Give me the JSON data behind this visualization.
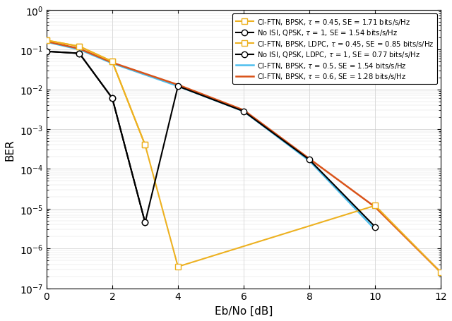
{
  "series": [
    {
      "label": "CI-FTN, BPSK, τ = 0.45, SE = 1.71 bits/s/Hz",
      "x": [
        0,
        1,
        2,
        3
      ],
      "y": [
        0.17,
        0.12,
        0.05,
        0.0004
      ],
      "color": "#EDB120",
      "linestyle": "-",
      "marker": "s",
      "markerfacecolor": "white",
      "markersize": 6,
      "linewidth": 1.5,
      "zorder": 5
    },
    {
      "label": "No ISI, QPSK, τ = 1, SE = 1.54 bits/s/Hz",
      "x": [
        0,
        1,
        2,
        3
      ],
      "y": [
        0.09,
        0.08,
        0.006,
        4.5e-06
      ],
      "color": "#000000",
      "linestyle": "-",
      "marker": "o",
      "markerfacecolor": "white",
      "markersize": 6,
      "linewidth": 1.5,
      "zorder": 5
    },
    {
      "label": "CI-FTN, BPSK, LDPC, τ = 0.45, SE = 0.85 bits/s/Hz",
      "x": [
        0,
        1,
        2,
        3,
        4,
        10,
        12
      ],
      "y": [
        0.17,
        0.12,
        0.05,
        0.0004,
        3.5e-07,
        1.2e-05,
        2.5e-07
      ],
      "color": "#EDB120",
      "linestyle": "-",
      "marker": "s",
      "markerfacecolor": "white",
      "markersize": 6,
      "linewidth": 1.5,
      "zorder": 4
    },
    {
      "label": "No ISI, QPSK, LDPC, τ = 1, SE = 0.77 bits/s/Hz",
      "x": [
        0,
        1,
        2,
        3,
        4,
        6,
        8,
        10
      ],
      "y": [
        0.09,
        0.08,
        0.006,
        4.5e-06,
        0.012,
        0.0028,
        0.00017,
        3.5e-06
      ],
      "color": "#000000",
      "linestyle": "-",
      "marker": "o",
      "markerfacecolor": "white",
      "markersize": 6,
      "linewidth": 1.5,
      "zorder": 4
    },
    {
      "label": "CI-FTN, BPSK, τ = 0.5, SE = 1.54 bits/s/Hz",
      "x": [
        0,
        1,
        2,
        4,
        6,
        8,
        10
      ],
      "y": [
        0.155,
        0.1,
        0.045,
        0.012,
        0.0028,
        0.00016,
        3e-06
      ],
      "color": "#4DBEEE",
      "linestyle": "-",
      "marker": null,
      "markersize": 0,
      "linewidth": 1.8,
      "zorder": 3
    },
    {
      "label": "CI-FTN, BPSK, τ = 0.6, SE = 1.28 bits/s/Hz",
      "x": [
        0,
        1,
        2,
        4,
        6,
        8,
        10,
        12
      ],
      "y": [
        0.16,
        0.105,
        0.047,
        0.013,
        0.003,
        0.00018,
        1.1e-05,
        2.5e-07
      ],
      "color": "#D95319",
      "linestyle": "-",
      "marker": null,
      "markersize": 0,
      "linewidth": 1.8,
      "zorder": 3
    }
  ],
  "xlabel": "Eb/No [dB]",
  "ylabel": "BER",
  "xlim": [
    0,
    12
  ],
  "ylim": [
    1e-07,
    1
  ],
  "xticks": [
    0,
    2,
    4,
    6,
    8,
    10,
    12
  ],
  "figsize": [
    6.4,
    4.56
  ],
  "dpi": 100,
  "bg_color": "#FFFFFF"
}
